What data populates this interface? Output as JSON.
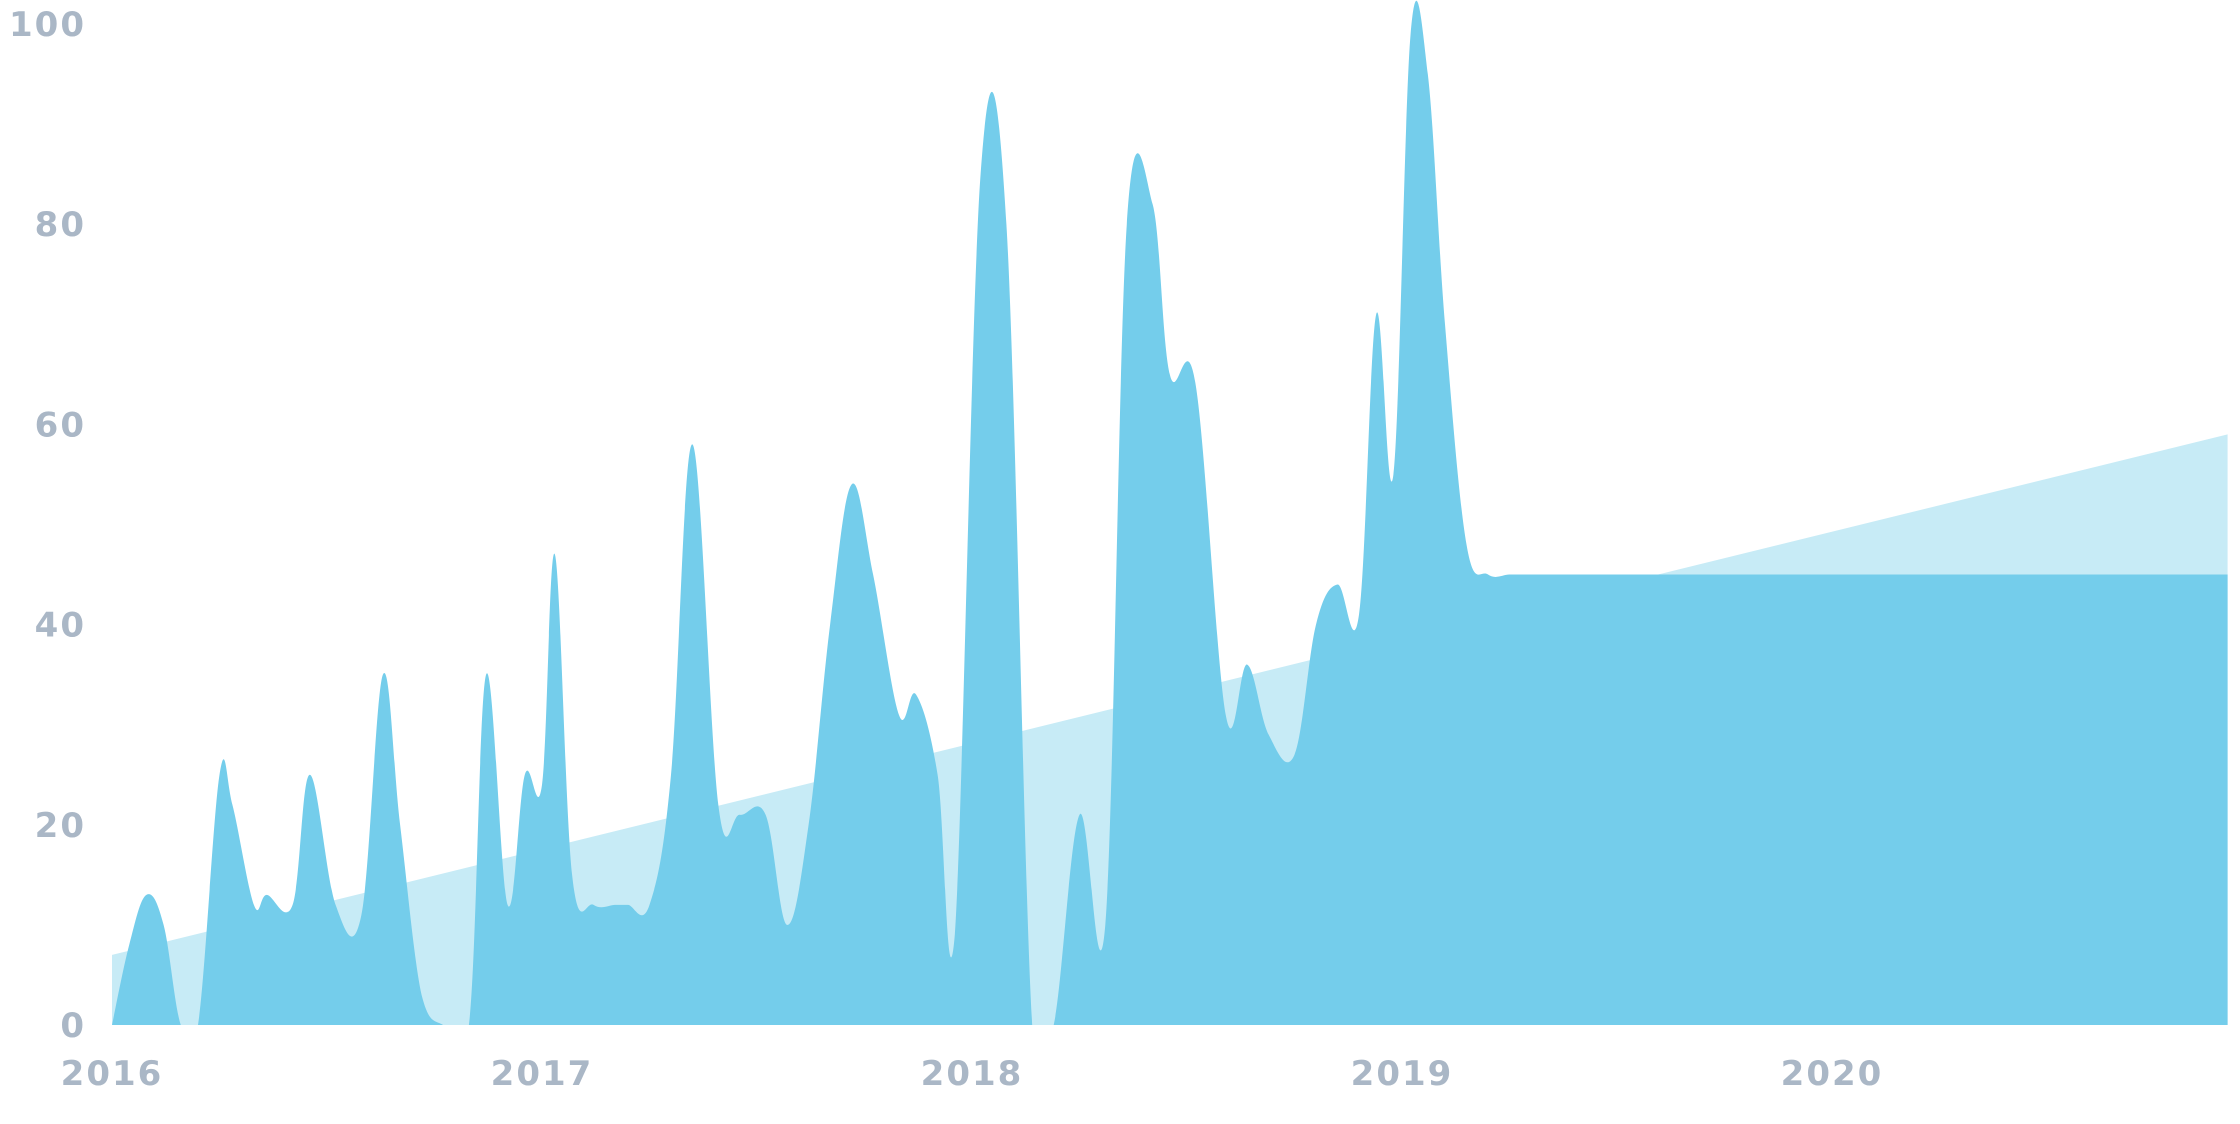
{
  "chart_data": {
    "type": "area",
    "title": "",
    "xlabel": "",
    "ylabel": "",
    "ylim": [
      0,
      100
    ],
    "grid": false,
    "legend": "none",
    "y_ticks": [
      "0",
      "20",
      "40",
      "60",
      "80",
      "100"
    ],
    "y_tick_values": [
      0,
      20,
      40,
      60,
      80,
      100
    ],
    "x_ticks": [
      "2016",
      "2017",
      "2018",
      "2019",
      "2020"
    ],
    "x_tick_values": [
      2016.0,
      2017.0,
      2018.0,
      2019.0,
      2020.0
    ],
    "colors": {
      "series": "#74cdeb",
      "trend": "#c7ebf6",
      "tick_text": "#aab7c6"
    },
    "series": [
      {
        "kind": "area",
        "x": [
          2016.0,
          2016.04,
          2016.08,
          2016.12,
          2016.16,
          2016.2,
          2016.25,
          2016.28,
          2016.33,
          2016.36,
          2016.42,
          2016.46,
          2016.52,
          2016.58,
          2016.63,
          2016.67,
          2016.72,
          2016.77,
          2016.83,
          2016.87,
          2016.92,
          2016.96,
          2017.0,
          2017.03,
          2017.07,
          2017.12,
          2017.17,
          2017.2,
          2017.25,
          2017.3,
          2017.35,
          2017.41,
          2017.46,
          2017.52,
          2017.57,
          2017.62,
          2017.67,
          2017.72,
          2017.77,
          2017.83,
          2017.87,
          2017.92,
          2017.96,
          2018.02,
          2018.08,
          2018.14,
          2018.19,
          2018.25,
          2018.31,
          2018.36,
          2018.42,
          2018.46,
          2018.52,
          2018.59,
          2018.64,
          2018.69,
          2018.75,
          2018.8,
          2018.85,
          2018.9,
          2018.94,
          2018.98,
          2019.02,
          2019.06,
          2019.1,
          2019.15,
          2019.2,
          2019.25,
          2019.29,
          2019.33,
          2019.37,
          2019.41,
          2019.46,
          2019.51,
          2019.55,
          2019.6,
          2019.64,
          2019.69,
          2019.73,
          2019.77,
          2019.82,
          2019.88,
          2019.92,
          2019.96,
          2020.02,
          2020.08,
          2020.13,
          2020.19,
          2020.25,
          2020.3,
          2020.36,
          2020.41,
          2020.45,
          2020.5,
          2020.56,
          2020.61,
          2020.66,
          2020.71,
          2020.76,
          2020.82,
          2020.88,
          2020.92
        ],
        "values": [
          0,
          8,
          13,
          10,
          0,
          0,
          25,
          22,
          12,
          13,
          12,
          25,
          12,
          11,
          35,
          20,
          3,
          0,
          0,
          35,
          12,
          25,
          24,
          47,
          15,
          12,
          12,
          12,
          12,
          25,
          58,
          22,
          21,
          21,
          10,
          20,
          40,
          54,
          45,
          31,
          33,
          25,
          9,
          85,
          80,
          0,
          0,
          21,
          10,
          80,
          82,
          65,
          64,
          31,
          36,
          29,
          27,
          40,
          44,
          41,
          71,
          55,
          99,
          95,
          70,
          48,
          45,
          45,
          45,
          45,
          45,
          45,
          45,
          45,
          45,
          45,
          45,
          45,
          45,
          45,
          45,
          45,
          45,
          45,
          45,
          45,
          45,
          45,
          45,
          45,
          45,
          45,
          45,
          45,
          45,
          45,
          45,
          45,
          45,
          45,
          45,
          45
        ]
      },
      {
        "kind": "trend",
        "x": [
          2016.0,
          2020.92
        ],
        "values": [
          7,
          59
        ]
      }
    ]
  }
}
